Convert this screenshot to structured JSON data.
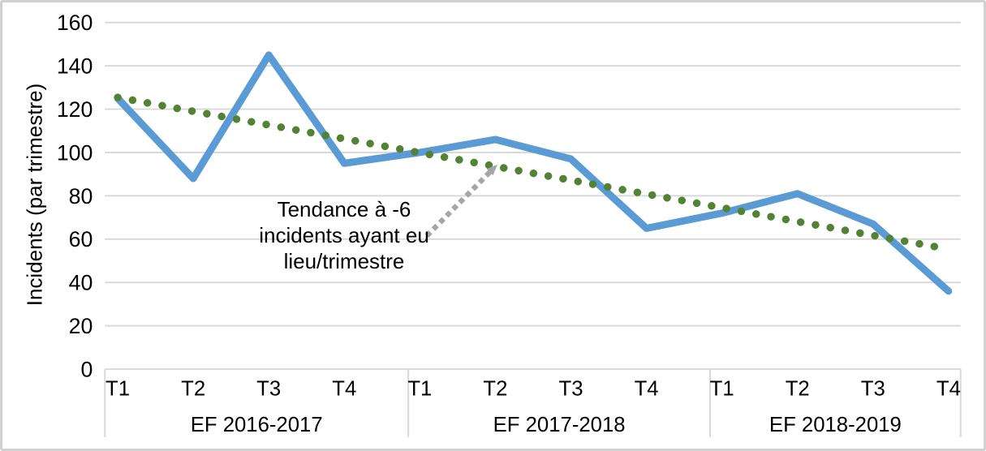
{
  "chart_data": {
    "type": "line",
    "title": "",
    "ylabel": "Incidents (par trimestre)",
    "xlabel": "",
    "ylim": [
      0,
      160
    ],
    "yticks": [
      0,
      20,
      40,
      60,
      80,
      100,
      120,
      140,
      160
    ],
    "categories": [
      "T1",
      "T2",
      "T3",
      "T4",
      "T1",
      "T2",
      "T3",
      "T4",
      "T1",
      "T2",
      "T3",
      "T4"
    ],
    "category_groups": [
      {
        "label": "EF 2016-2017",
        "span": 4
      },
      {
        "label": "EF 2017-2018",
        "span": 4
      },
      {
        "label": "EF 2018-2019",
        "span": 4
      }
    ],
    "series": [
      {
        "name": "incidents",
        "style": "solid",
        "color": "#5B9BD5",
        "values": [
          125,
          88,
          145,
          95,
          100,
          106,
          97,
          65,
          72,
          81,
          67,
          36
        ]
      },
      {
        "name": "tendance",
        "style": "dotted",
        "color": "#548235",
        "values": [
          125.4,
          119.0,
          112.7,
          106.3,
          99.9,
          93.6,
          87.2,
          80.8,
          74.5,
          68.1,
          61.7,
          55.4
        ]
      }
    ],
    "trend_per_quarter": -6,
    "grid": true,
    "legend": "none",
    "annotation": {
      "lines": [
        "Tendance à -6",
        "incidents ayant eu",
        "lieu/trimestre"
      ],
      "arrow_color": "#A6A6A6"
    },
    "colors": {
      "gridline": "#D9D9D9",
      "axis_text": "#000000",
      "background": "#FFFFFF",
      "border": "#D2D0D0"
    }
  }
}
